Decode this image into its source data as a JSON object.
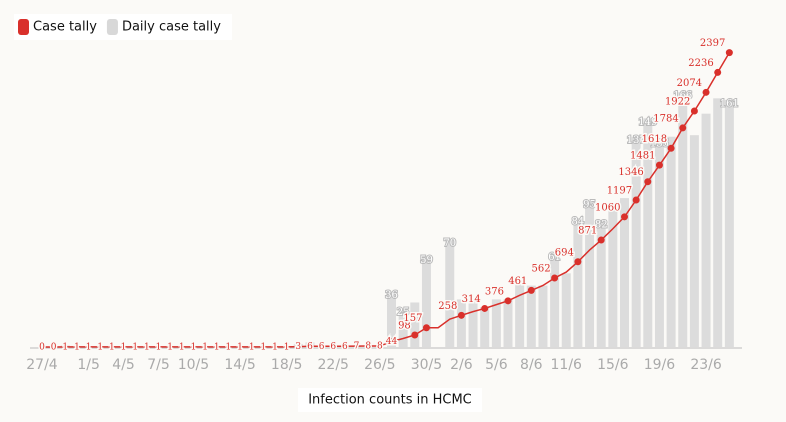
{
  "chart_data": {
    "type": "bar-line",
    "caption": "Infection counts in HCMC",
    "categories": [
      "27/4",
      null,
      null,
      null,
      "1/5",
      null,
      null,
      "4/5",
      null,
      null,
      "7/5",
      null,
      null,
      "10/5",
      null,
      null,
      null,
      "14/5",
      null,
      null,
      null,
      "18/5",
      null,
      null,
      null,
      "22/5",
      null,
      null,
      null,
      "26/5",
      null,
      null,
      null,
      "30/5",
      null,
      null,
      "2/6",
      null,
      null,
      "5/6",
      null,
      null,
      "8/6",
      null,
      null,
      "11/6",
      null,
      null,
      null,
      "15/6",
      null,
      null,
      null,
      "19/6",
      null,
      null,
      null,
      "23/6",
      null,
      null
    ],
    "ylim": [
      0,
      2500
    ],
    "y2lim": [
      0,
      200
    ],
    "legend": "top-left",
    "series": [
      {
        "name": "Case tally",
        "type": "line",
        "color": "#d9302b",
        "values": [
          0,
          0,
          1,
          1,
          1,
          1,
          1,
          1,
          1,
          1,
          1,
          1,
          1,
          1,
          1,
          1,
          1,
          1,
          1,
          1,
          1,
          1,
          3,
          6,
          6,
          6,
          6,
          7,
          8,
          8,
          44,
          69,
          98,
          157,
          157,
          227,
          258,
          288,
          314,
          345,
          376,
          421,
          461,
          501,
          562,
          610,
          694,
          789,
          871,
          963,
          1060,
          1197,
          1346,
          1481,
          1618,
          1784,
          1922,
          2074,
          2236,
          2397
        ],
        "value_labels": [
          "0",
          "0",
          "1",
          "1",
          "1",
          "1",
          "1",
          "1",
          "1",
          "1",
          "1",
          "1",
          "1",
          "1",
          "1",
          "1",
          "1",
          "1",
          "1",
          "1",
          "1",
          "1",
          "3",
          "6",
          "6",
          "6",
          "6",
          "7",
          "8",
          "8",
          "44",
          null,
          "98",
          "157",
          null,
          null,
          "258",
          null,
          "314",
          null,
          "376",
          null,
          "461",
          null,
          "562",
          null,
          "694",
          null,
          "871",
          null,
          "1060",
          "1197",
          "1346",
          "1481",
          "1618",
          "1784",
          "1922",
          "2074",
          "2236",
          "2397"
        ]
      },
      {
        "name": "Daily case tally",
        "type": "bar",
        "axis": "y2",
        "color": "#dcdcdc",
        "values": [
          0,
          0,
          1,
          0,
          0,
          0,
          0,
          0,
          0,
          0,
          0,
          0,
          0,
          0,
          0,
          0,
          0,
          0,
          0,
          0,
          0,
          0,
          2,
          3,
          0,
          0,
          0,
          1,
          1,
          0,
          36,
          25,
          29,
          59,
          0,
          70,
          31,
          30,
          26,
          31,
          31,
          45,
          40,
          40,
          61,
          48,
          84,
          95,
          82,
          92,
          97,
          137,
          149,
          135,
          137,
          166,
          138,
          152,
          162,
          161
        ],
        "value_labels": [
          null,
          null,
          null,
          null,
          null,
          null,
          null,
          null,
          null,
          null,
          null,
          null,
          null,
          null,
          null,
          null,
          null,
          null,
          null,
          null,
          null,
          null,
          null,
          null,
          null,
          null,
          null,
          null,
          null,
          null,
          "36",
          "25",
          null,
          "59",
          null,
          "70",
          null,
          null,
          null,
          null,
          null,
          null,
          null,
          null,
          "61",
          null,
          "84",
          "95",
          "82",
          null,
          null,
          "137",
          "149",
          "135",
          null,
          "166",
          null,
          null,
          null,
          "161"
        ]
      }
    ]
  }
}
